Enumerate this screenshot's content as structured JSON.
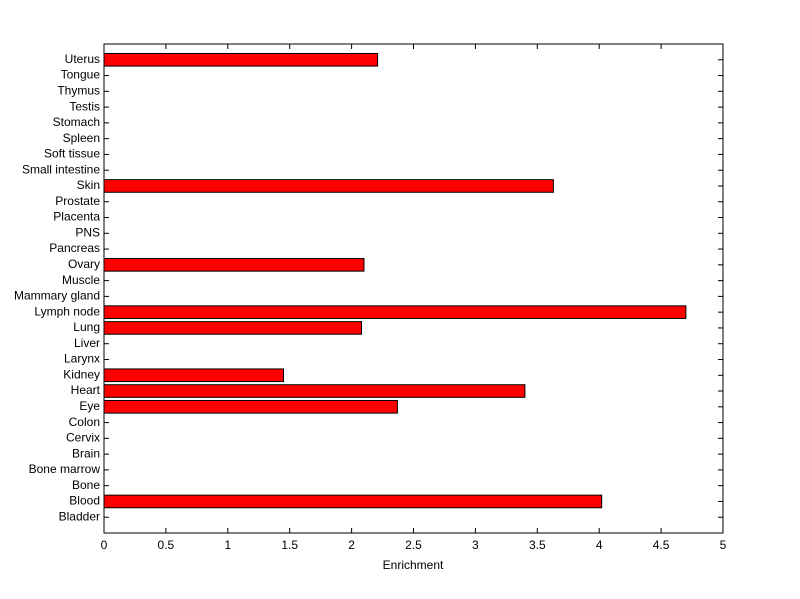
{
  "chart_data": {
    "type": "barh",
    "xlabel": "Enrichment",
    "categories": [
      "Bladder",
      "Blood",
      "Bone",
      "Bone marrow",
      "Brain",
      "Cervix",
      "Colon",
      "Eye",
      "Heart",
      "Kidney",
      "Larynx",
      "Liver",
      "Lung",
      "Lymph node",
      "Mammary gland",
      "Muscle",
      "Ovary",
      "Pancreas",
      "PNS",
      "Placenta",
      "Prostate",
      "Skin",
      "Small intestine",
      "Soft tissue",
      "Spleen",
      "Stomach",
      "Testis",
      "Thymus",
      "Tongue",
      "Uterus"
    ],
    "values": [
      0,
      4.02,
      0,
      0,
      0,
      0,
      0,
      2.37,
      3.4,
      1.45,
      0,
      0,
      2.08,
      4.7,
      0,
      0,
      2.1,
      0,
      0,
      0,
      0,
      3.63,
      0,
      0,
      0,
      0,
      0,
      0,
      0,
      2.21
    ],
    "color": "#ff0000",
    "xlim": [
      0,
      5
    ],
    "xticks": [
      0,
      0.5,
      1,
      1.5,
      2,
      2.5,
      3,
      3.5,
      4,
      4.5,
      5
    ]
  }
}
